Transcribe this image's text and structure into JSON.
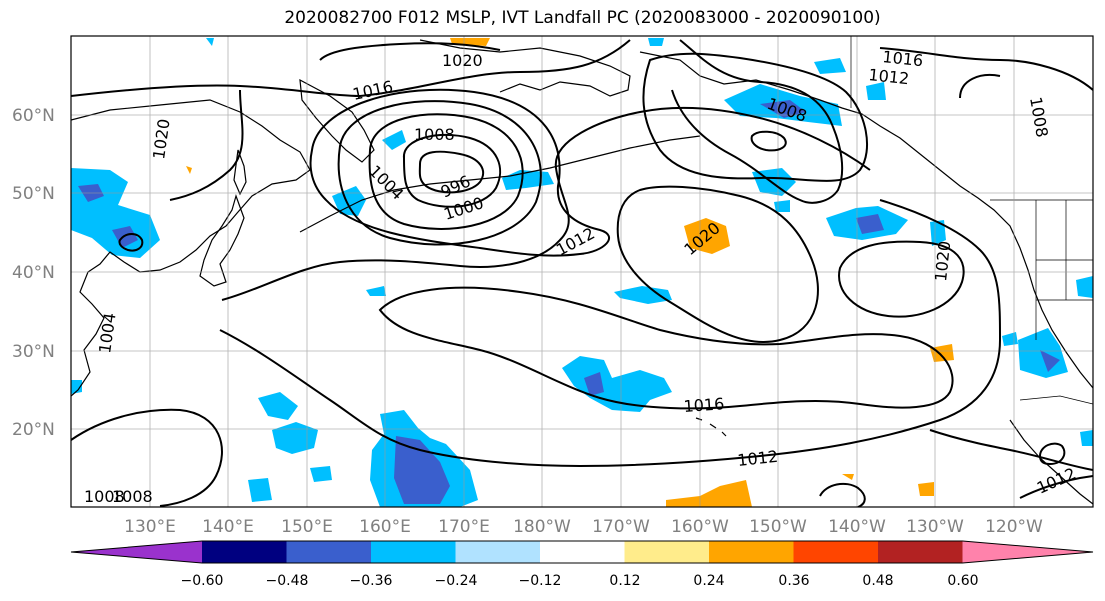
{
  "title": "2020082700 F012 MSLP, IVT Landfall PC (2020083000 - 2020090100)",
  "lat_labels": [
    "60°N",
    "50°N",
    "40°N",
    "30°N",
    "20°N"
  ],
  "lon_labels": [
    "130°E",
    "140°E",
    "150°E",
    "160°E",
    "170°E",
    "180°W",
    "170°W",
    "160°W",
    "150°W",
    "140°W",
    "130°W",
    "120°W"
  ],
  "contour_labels": [
    "1020",
    "1016",
    "1012",
    "1008",
    "1004",
    "1000",
    "996",
    "1020",
    "1016",
    "1012",
    "1008",
    "1004",
    "1020",
    "1012",
    "1016",
    "1012",
    "1008",
    "1008",
    "1020",
    "1008"
  ],
  "colorbar": {
    "colors": [
      "#9a32cd",
      "#000080",
      "#3a5fcd",
      "#00bfff",
      "#b0e2ff",
      "#ffffff",
      "#ffec8b",
      "#ffa500",
      "#ff4500",
      "#b22222",
      "#ff82ab"
    ],
    "ticks": [
      "−0.60",
      "−0.48",
      "−0.36",
      "−0.24",
      "−0.12",
      "0.12",
      "0.24",
      "0.36",
      "0.48",
      "0.60"
    ]
  }
}
